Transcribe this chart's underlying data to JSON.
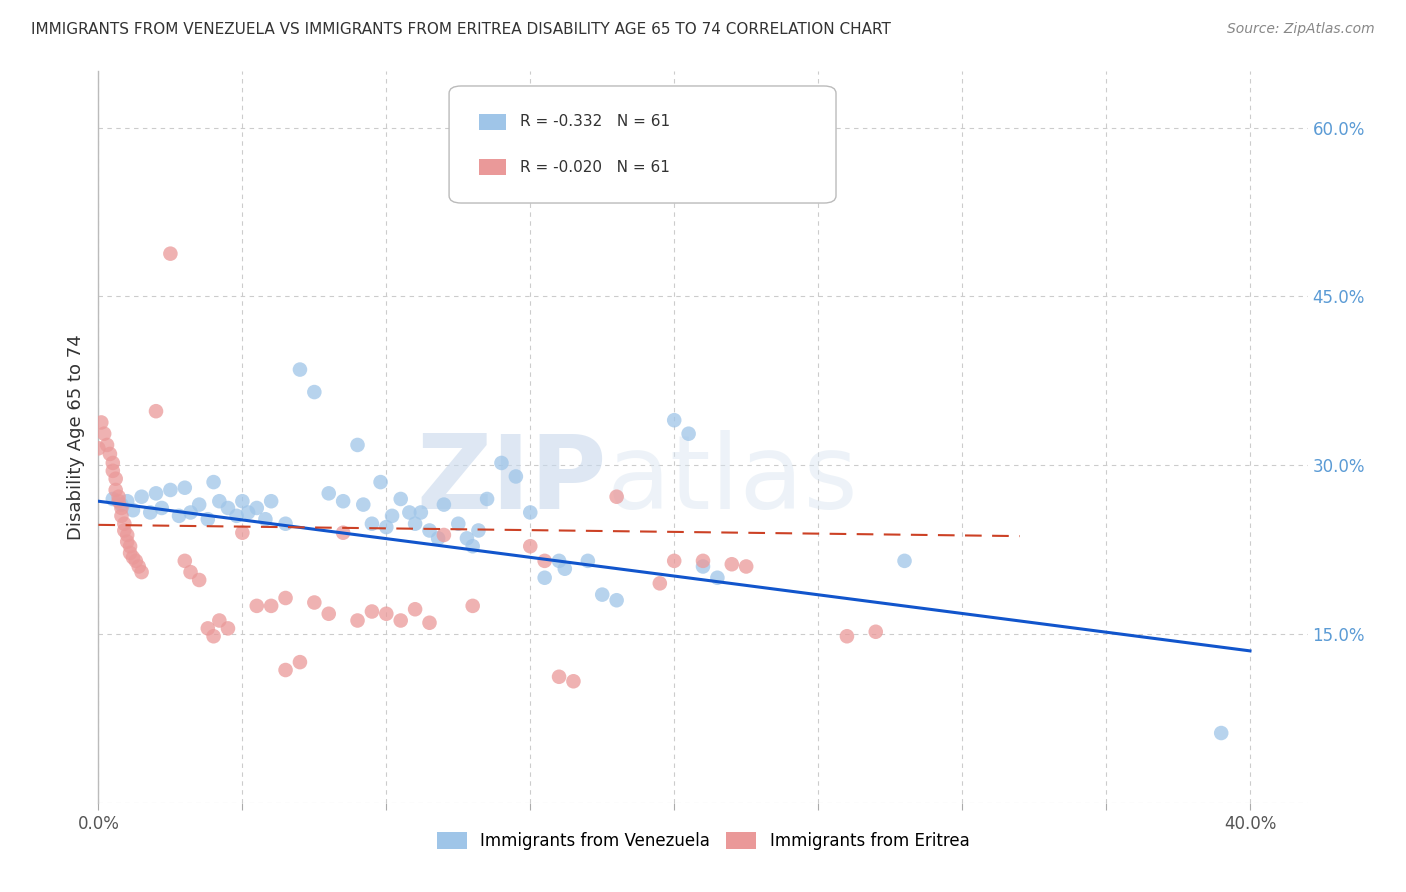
{
  "title": "IMMIGRANTS FROM VENEZUELA VS IMMIGRANTS FROM ERITREA DISABILITY AGE 65 TO 74 CORRELATION CHART",
  "source": "Source: ZipAtlas.com",
  "ylabel": "Disability Age 65 to 74",
  "xlim": [
    0.0,
    0.42
  ],
  "ylim": [
    0.0,
    0.65
  ],
  "x_ticks": [
    0.0,
    0.05,
    0.1,
    0.15,
    0.2,
    0.25,
    0.3,
    0.35,
    0.4
  ],
  "y_ticks_right": [
    0.0,
    0.15,
    0.3,
    0.45,
    0.6
  ],
  "y_tick_labels_right": [
    "",
    "15.0%",
    "30.0%",
    "45.0%",
    "60.0%"
  ],
  "venezuela_R": "-0.332",
  "venezuela_N": "61",
  "eritrea_R": "-0.020",
  "eritrea_N": "61",
  "venezuela_color": "#9fc5e8",
  "eritrea_color": "#ea9999",
  "venezuela_line_color": "#1155cc",
  "eritrea_line_color": "#cc4125",
  "grid_color": "#cccccc",
  "background_color": "#ffffff",
  "watermark_zip": "ZIP",
  "watermark_atlas": "atlas",
  "venezuela_points": [
    [
      0.005,
      0.27
    ],
    [
      0.008,
      0.265
    ],
    [
      0.01,
      0.268
    ],
    [
      0.012,
      0.26
    ],
    [
      0.015,
      0.272
    ],
    [
      0.018,
      0.258
    ],
    [
      0.02,
      0.275
    ],
    [
      0.022,
      0.262
    ],
    [
      0.025,
      0.278
    ],
    [
      0.028,
      0.255
    ],
    [
      0.03,
      0.28
    ],
    [
      0.032,
      0.258
    ],
    [
      0.035,
      0.265
    ],
    [
      0.038,
      0.252
    ],
    [
      0.04,
      0.285
    ],
    [
      0.042,
      0.268
    ],
    [
      0.045,
      0.262
    ],
    [
      0.048,
      0.255
    ],
    [
      0.05,
      0.268
    ],
    [
      0.052,
      0.258
    ],
    [
      0.055,
      0.262
    ],
    [
      0.058,
      0.252
    ],
    [
      0.06,
      0.268
    ],
    [
      0.065,
      0.248
    ],
    [
      0.07,
      0.385
    ],
    [
      0.075,
      0.365
    ],
    [
      0.08,
      0.275
    ],
    [
      0.085,
      0.268
    ],
    [
      0.09,
      0.318
    ],
    [
      0.092,
      0.265
    ],
    [
      0.095,
      0.248
    ],
    [
      0.098,
      0.285
    ],
    [
      0.1,
      0.245
    ],
    [
      0.102,
      0.255
    ],
    [
      0.105,
      0.27
    ],
    [
      0.108,
      0.258
    ],
    [
      0.11,
      0.248
    ],
    [
      0.112,
      0.258
    ],
    [
      0.115,
      0.242
    ],
    [
      0.118,
      0.235
    ],
    [
      0.12,
      0.265
    ],
    [
      0.125,
      0.248
    ],
    [
      0.128,
      0.235
    ],
    [
      0.13,
      0.228
    ],
    [
      0.132,
      0.242
    ],
    [
      0.135,
      0.27
    ],
    [
      0.14,
      0.302
    ],
    [
      0.145,
      0.29
    ],
    [
      0.15,
      0.258
    ],
    [
      0.155,
      0.2
    ],
    [
      0.16,
      0.215
    ],
    [
      0.162,
      0.208
    ],
    [
      0.17,
      0.215
    ],
    [
      0.175,
      0.185
    ],
    [
      0.18,
      0.18
    ],
    [
      0.2,
      0.34
    ],
    [
      0.205,
      0.328
    ],
    [
      0.21,
      0.21
    ],
    [
      0.215,
      0.2
    ],
    [
      0.28,
      0.215
    ],
    [
      0.39,
      0.062
    ]
  ],
  "eritrea_points": [
    [
      0.0,
      0.315
    ],
    [
      0.001,
      0.338
    ],
    [
      0.002,
      0.328
    ],
    [
      0.003,
      0.318
    ],
    [
      0.004,
      0.31
    ],
    [
      0.005,
      0.302
    ],
    [
      0.005,
      0.295
    ],
    [
      0.006,
      0.288
    ],
    [
      0.006,
      0.278
    ],
    [
      0.007,
      0.272
    ],
    [
      0.007,
      0.268
    ],
    [
      0.008,
      0.262
    ],
    [
      0.008,
      0.255
    ],
    [
      0.009,
      0.248
    ],
    [
      0.009,
      0.242
    ],
    [
      0.01,
      0.238
    ],
    [
      0.01,
      0.232
    ],
    [
      0.011,
      0.228
    ],
    [
      0.011,
      0.222
    ],
    [
      0.012,
      0.218
    ],
    [
      0.013,
      0.215
    ],
    [
      0.014,
      0.21
    ],
    [
      0.015,
      0.205
    ],
    [
      0.02,
      0.348
    ],
    [
      0.025,
      0.488
    ],
    [
      0.03,
      0.215
    ],
    [
      0.032,
      0.205
    ],
    [
      0.035,
      0.198
    ],
    [
      0.038,
      0.155
    ],
    [
      0.04,
      0.148
    ],
    [
      0.042,
      0.162
    ],
    [
      0.045,
      0.155
    ],
    [
      0.05,
      0.24
    ],
    [
      0.055,
      0.175
    ],
    [
      0.06,
      0.175
    ],
    [
      0.065,
      0.182
    ],
    [
      0.07,
      0.125
    ],
    [
      0.075,
      0.178
    ],
    [
      0.08,
      0.168
    ],
    [
      0.085,
      0.24
    ],
    [
      0.09,
      0.162
    ],
    [
      0.095,
      0.17
    ],
    [
      0.1,
      0.168
    ],
    [
      0.105,
      0.162
    ],
    [
      0.11,
      0.172
    ],
    [
      0.115,
      0.16
    ],
    [
      0.12,
      0.238
    ],
    [
      0.13,
      0.175
    ],
    [
      0.15,
      0.228
    ],
    [
      0.155,
      0.215
    ],
    [
      0.16,
      0.112
    ],
    [
      0.165,
      0.108
    ],
    [
      0.18,
      0.272
    ],
    [
      0.195,
      0.195
    ],
    [
      0.2,
      0.215
    ],
    [
      0.21,
      0.215
    ],
    [
      0.22,
      0.212
    ],
    [
      0.225,
      0.21
    ],
    [
      0.26,
      0.148
    ],
    [
      0.27,
      0.152
    ],
    [
      0.065,
      0.118
    ]
  ]
}
